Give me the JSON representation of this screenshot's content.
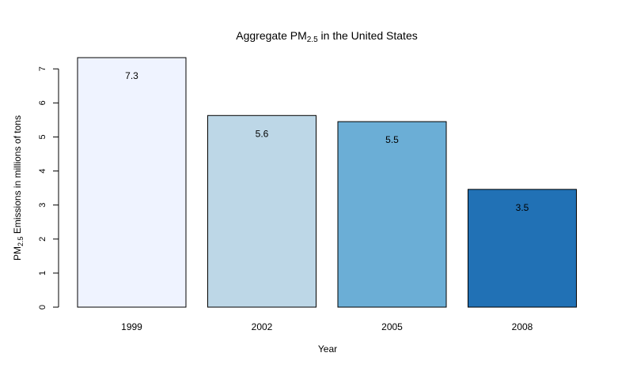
{
  "chart_data": {
    "type": "bar",
    "title_main": "Aggregate PM",
    "title_sub": "2.5",
    "title_rest": " in the United States",
    "ylabel_main": "PM",
    "ylabel_sub": "2.5",
    "ylabel_rest": " Emissions in millions of tons",
    "xlabel": "Year",
    "categories": [
      "1999",
      "2002",
      "2005",
      "2008"
    ],
    "values": [
      7.33,
      5.63,
      5.45,
      3.46
    ],
    "value_labels": [
      "7.3",
      "5.6",
      "5.5",
      "3.5"
    ],
    "colors": [
      "#EFF3FF",
      "#BDD7E7",
      "#6BAED6",
      "#2171B5"
    ],
    "ylim": [
      0,
      7.33
    ],
    "yticks": [
      0,
      1,
      2,
      3,
      4,
      5,
      6,
      7
    ],
    "ytick_labels": [
      "0",
      "1",
      "2",
      "3",
      "4",
      "5",
      "6",
      "7"
    ],
    "grid": false,
    "legend": "none"
  }
}
